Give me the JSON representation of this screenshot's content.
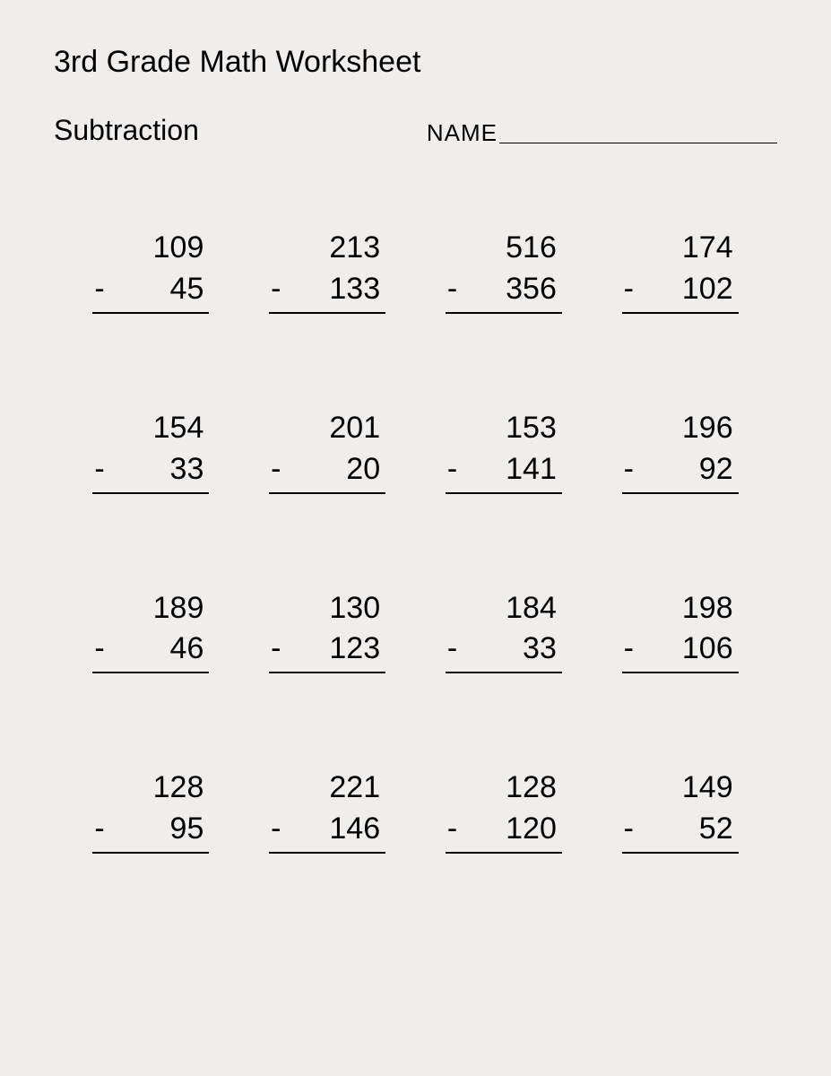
{
  "title": "3rd Grade Math Worksheet",
  "subtitle": "Subtraction",
  "name_label": "NAME",
  "operator": "-",
  "colors": {
    "background": "#f0eeec",
    "text": "#000000",
    "line": "#000000"
  },
  "typography": {
    "title_fontsize": 34,
    "subtitle_fontsize": 32,
    "name_fontsize": 26,
    "problem_fontsize": 34,
    "font_family": "Arial"
  },
  "layout": {
    "columns": 4,
    "rows": 4,
    "column_gap": 60,
    "row_gap": 105
  },
  "problems": [
    {
      "minuend": "109",
      "subtrahend": "45"
    },
    {
      "minuend": "213",
      "subtrahend": "133"
    },
    {
      "minuend": "516",
      "subtrahend": "356"
    },
    {
      "minuend": "174",
      "subtrahend": "102"
    },
    {
      "minuend": "154",
      "subtrahend": "33"
    },
    {
      "minuend": "201",
      "subtrahend": "20"
    },
    {
      "minuend": "153",
      "subtrahend": "141"
    },
    {
      "minuend": "196",
      "subtrahend": "92"
    },
    {
      "minuend": "189",
      "subtrahend": "46"
    },
    {
      "minuend": "130",
      "subtrahend": "123"
    },
    {
      "minuend": "184",
      "subtrahend": "33"
    },
    {
      "minuend": "198",
      "subtrahend": "106"
    },
    {
      "minuend": "128",
      "subtrahend": "95"
    },
    {
      "minuend": "221",
      "subtrahend": "146"
    },
    {
      "minuend": "128",
      "subtrahend": "120"
    },
    {
      "minuend": "149",
      "subtrahend": "52"
    }
  ]
}
